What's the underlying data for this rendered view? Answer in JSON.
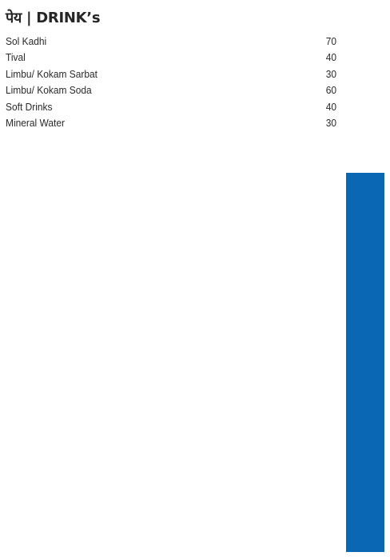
{
  "menu": {
    "title": "पेय | DRINK’s",
    "items": [
      {
        "name": "Sol Kadhi",
        "price": "70"
      },
      {
        "name": "Tival",
        "price": "40"
      },
      {
        "name": "Limbu/ Kokam Sarbat",
        "price": "30"
      },
      {
        "name": "Limbu/ Kokam Soda",
        "price": "60"
      },
      {
        "name": "Soft Drinks",
        "price": "40"
      },
      {
        "name": "Mineral Water",
        "price": "30"
      }
    ]
  },
  "colors": {
    "accent_bar": "#0a67b4",
    "text": "#262626",
    "background": "#ffffff"
  }
}
